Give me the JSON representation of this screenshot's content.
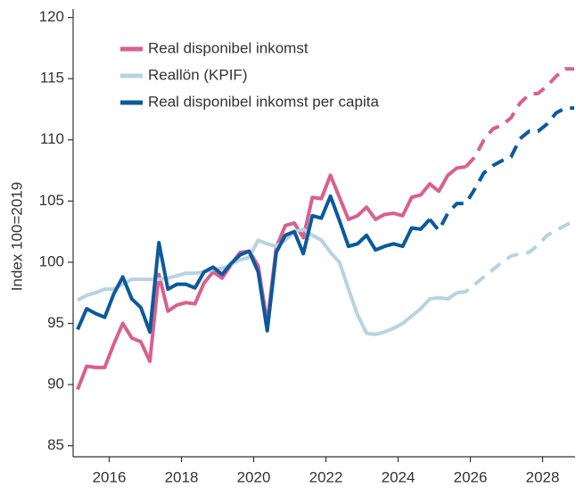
{
  "chart_data": {
    "type": "line",
    "y_label": "Index 100=2019",
    "x": [
      2015.125,
      2015.375,
      2015.625,
      2015.875,
      2016.125,
      2016.375,
      2016.625,
      2016.875,
      2017.125,
      2017.375,
      2017.625,
      2017.875,
      2018.125,
      2018.375,
      2018.625,
      2018.875,
      2019.125,
      2019.375,
      2019.625,
      2019.875,
      2020.125,
      2020.375,
      2020.625,
      2020.875,
      2021.125,
      2021.375,
      2021.625,
      2021.875,
      2022.125,
      2022.375,
      2022.625,
      2022.875,
      2023.125,
      2023.375,
      2023.625,
      2023.875,
      2024.125,
      2024.375,
      2024.625,
      2024.875,
      2025.125,
      2025.375,
      2025.625,
      2025.875,
      2026.125,
      2026.375,
      2026.625,
      2026.875,
      2027.125,
      2027.375,
      2027.625,
      2027.875,
      2028.125,
      2028.375,
      2028.625,
      2028.875
    ],
    "series": [
      {
        "name": "Real disponibel inkomst",
        "color": "#d8608f",
        "forecast_from": 43,
        "values": [
          89.6,
          91.5,
          91.4,
          91.4,
          93.3,
          95.0,
          93.8,
          93.5,
          91.9,
          99.0,
          96.0,
          96.5,
          96.7,
          96.6,
          98.3,
          99.2,
          98.7,
          99.8,
          100.8,
          100.9,
          99.7,
          95.0,
          101.2,
          103.0,
          103.2,
          102.0,
          105.3,
          105.2,
          107.1,
          105.3,
          103.5,
          103.8,
          104.5,
          103.5,
          103.9,
          104.0,
          103.8,
          105.3,
          105.5,
          106.4,
          105.8,
          107.1,
          107.7,
          107.8,
          108.6,
          110.0,
          110.9,
          111.2,
          111.8,
          113.0,
          113.7,
          113.8,
          114.4,
          115.2,
          115.8,
          115.8
        ]
      },
      {
        "name": "Reallön (KPIF)",
        "color": "#b8d3e0",
        "forecast_from": 42,
        "values": [
          96.9,
          97.3,
          97.5,
          97.8,
          97.8,
          98.2,
          98.6,
          98.6,
          98.6,
          98.6,
          98.7,
          98.9,
          99.1,
          99.1,
          99.2,
          99.4,
          99.5,
          99.8,
          100.2,
          100.4,
          101.8,
          101.5,
          101.3,
          101.8,
          102.5,
          102.7,
          102.2,
          101.8,
          100.8,
          100.0,
          97.8,
          95.7,
          94.2,
          94.1,
          94.3,
          94.6,
          95.0,
          95.6,
          96.2,
          97.0,
          97.1,
          97.0,
          97.5,
          97.6,
          98.2,
          98.8,
          99.4,
          100.0,
          100.5,
          100.7,
          100.8,
          101.4,
          102.2,
          102.6,
          103.0,
          103.4
        ]
      },
      {
        "name": "Real disponibel inkomst per capita",
        "color": "#0a5a9c",
        "forecast_from": 39,
        "values": [
          94.5,
          96.2,
          95.8,
          95.5,
          97.4,
          98.8,
          97.0,
          96.3,
          94.3,
          101.6,
          97.8,
          98.2,
          98.2,
          97.9,
          99.2,
          99.6,
          99.0,
          99.9,
          100.6,
          100.9,
          99.2,
          94.4,
          100.8,
          102.2,
          102.5,
          100.7,
          103.8,
          103.6,
          105.4,
          103.4,
          101.3,
          101.5,
          102.2,
          101.0,
          101.3,
          101.5,
          101.3,
          102.8,
          102.7,
          103.5,
          102.6,
          104.0,
          104.8,
          104.8,
          106.0,
          107.3,
          107.9,
          108.3,
          108.6,
          110.1,
          110.7,
          110.7,
          111.3,
          112.2,
          112.6,
          112.6
        ]
      }
    ],
    "xlim": [
      2015,
      2028.9
    ],
    "xticks": [
      2016,
      2018,
      2020,
      2022,
      2024,
      2026,
      2028
    ],
    "ylim": [
      84.1,
      120.7
    ],
    "yticks": [
      85,
      90,
      95,
      100,
      105,
      110,
      115,
      120
    ],
    "legend": "upper left"
  }
}
